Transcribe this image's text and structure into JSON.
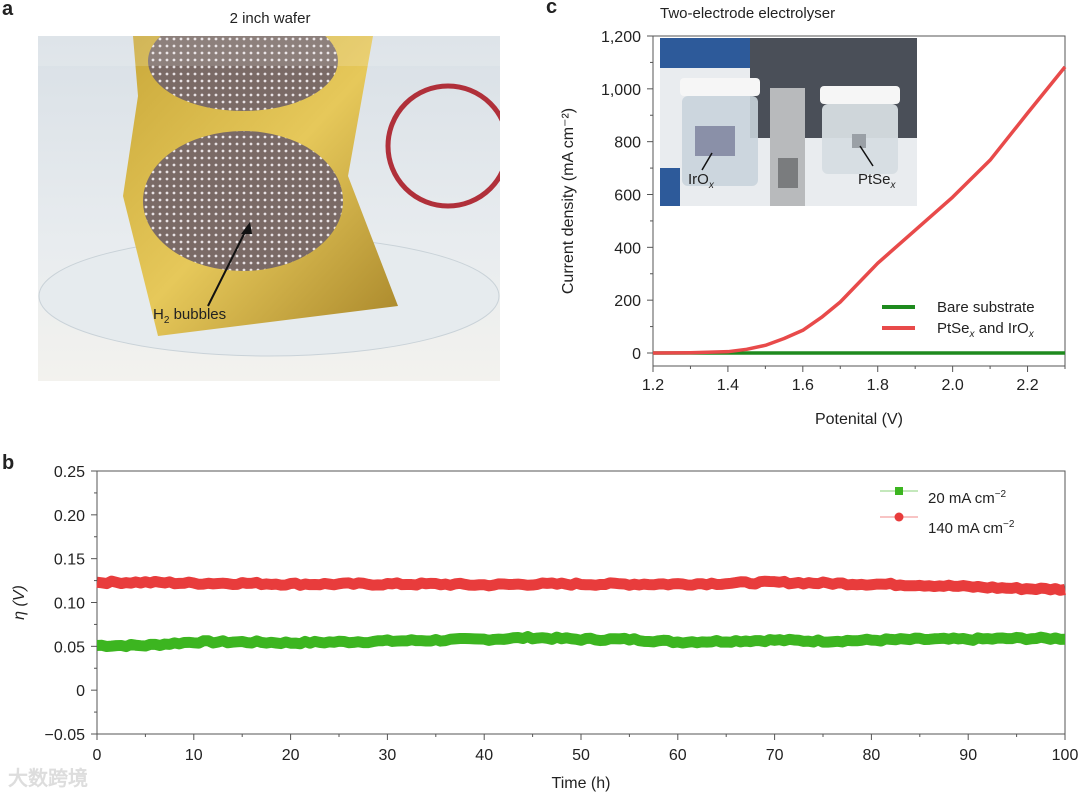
{
  "panels": {
    "a": {
      "label": "a",
      "title": "2 inch wafer",
      "annotation": "H",
      "annotation_sub": "2",
      "annotation_rest": " bubbles"
    },
    "b": {
      "label": "b"
    },
    "c": {
      "label": "c",
      "title": "Two-electrode electrolyser",
      "inset_labels": {
        "left": "IrO",
        "left_sub": "x",
        "right": "PtSe",
        "right_sub": "x"
      }
    }
  },
  "watermark": "大数跨境",
  "chart_data": [
    {
      "id": "c",
      "type": "line",
      "title": "Two-electrode electrolyser",
      "xlabel": "Potenital (V)",
      "ylabel": "Current density (mA cm⁻²)",
      "xlim": [
        1.2,
        2.3
      ],
      "ylim": [
        -50,
        1200
      ],
      "xticks": [
        "1.2",
        "1.4",
        "1.6",
        "1.8",
        "2.0",
        "2.2"
      ],
      "yticks": [
        "0",
        "200",
        "400",
        "600",
        "800",
        "1,000",
        "1,200"
      ],
      "legend_position": "bottom-right",
      "x": [
        1.2,
        1.3,
        1.4,
        1.45,
        1.5,
        1.55,
        1.6,
        1.65,
        1.7,
        1.8,
        1.9,
        2.0,
        2.1,
        2.2,
        2.3
      ],
      "series": [
        {
          "name": "Bare substrate",
          "color": "#1e8a1e",
          "values": [
            0,
            0,
            0,
            0,
            0,
            0,
            0,
            0,
            0,
            0,
            0,
            0,
            0,
            0,
            0
          ]
        },
        {
          "name": "PtSe",
          "name_sub": "x",
          "name_rest": " and IrO",
          "name_rest_sub": "x",
          "color": "#e84a4a",
          "values": [
            0,
            1,
            5,
            14,
            29,
            55,
            86,
            135,
            193,
            340,
            465,
            590,
            730,
            908,
            1083
          ]
        }
      ]
    },
    {
      "id": "b",
      "type": "line",
      "xlabel": "Time (h)",
      "ylabel": "η (V)",
      "xlim": [
        0,
        100
      ],
      "ylim": [
        -0.05,
        0.25
      ],
      "xticks": [
        "0",
        "10",
        "20",
        "30",
        "40",
        "50",
        "60",
        "70",
        "80",
        "90",
        "100"
      ],
      "yticks": [
        "−0.05",
        "0",
        "0.05",
        "0.10",
        "0.15",
        "0.20",
        "0.25"
      ],
      "legend_position": "top-right",
      "x": [
        0,
        5,
        10,
        15,
        20,
        25,
        30,
        35,
        40,
        45,
        50,
        55,
        60,
        65,
        70,
        75,
        80,
        85,
        90,
        95,
        100
      ],
      "series": [
        {
          "name": "20 mA cm",
          "sup": "−2",
          "color": "#3cb520",
          "marker": "square",
          "values": [
            0.051,
            0.051,
            0.055,
            0.055,
            0.054,
            0.055,
            0.056,
            0.057,
            0.058,
            0.06,
            0.058,
            0.058,
            0.055,
            0.056,
            0.057,
            0.056,
            0.057,
            0.058,
            0.058,
            0.059,
            0.059
          ]
        },
        {
          "name": "140 mA cm",
          "sup": "−2",
          "color": "#e83c3c",
          "marker": "circle",
          "values": [
            0.123,
            0.123,
            0.122,
            0.122,
            0.121,
            0.121,
            0.121,
            0.121,
            0.12,
            0.121,
            0.121,
            0.121,
            0.121,
            0.122,
            0.123,
            0.122,
            0.121,
            0.12,
            0.118,
            0.116,
            0.115
          ]
        }
      ]
    }
  ]
}
